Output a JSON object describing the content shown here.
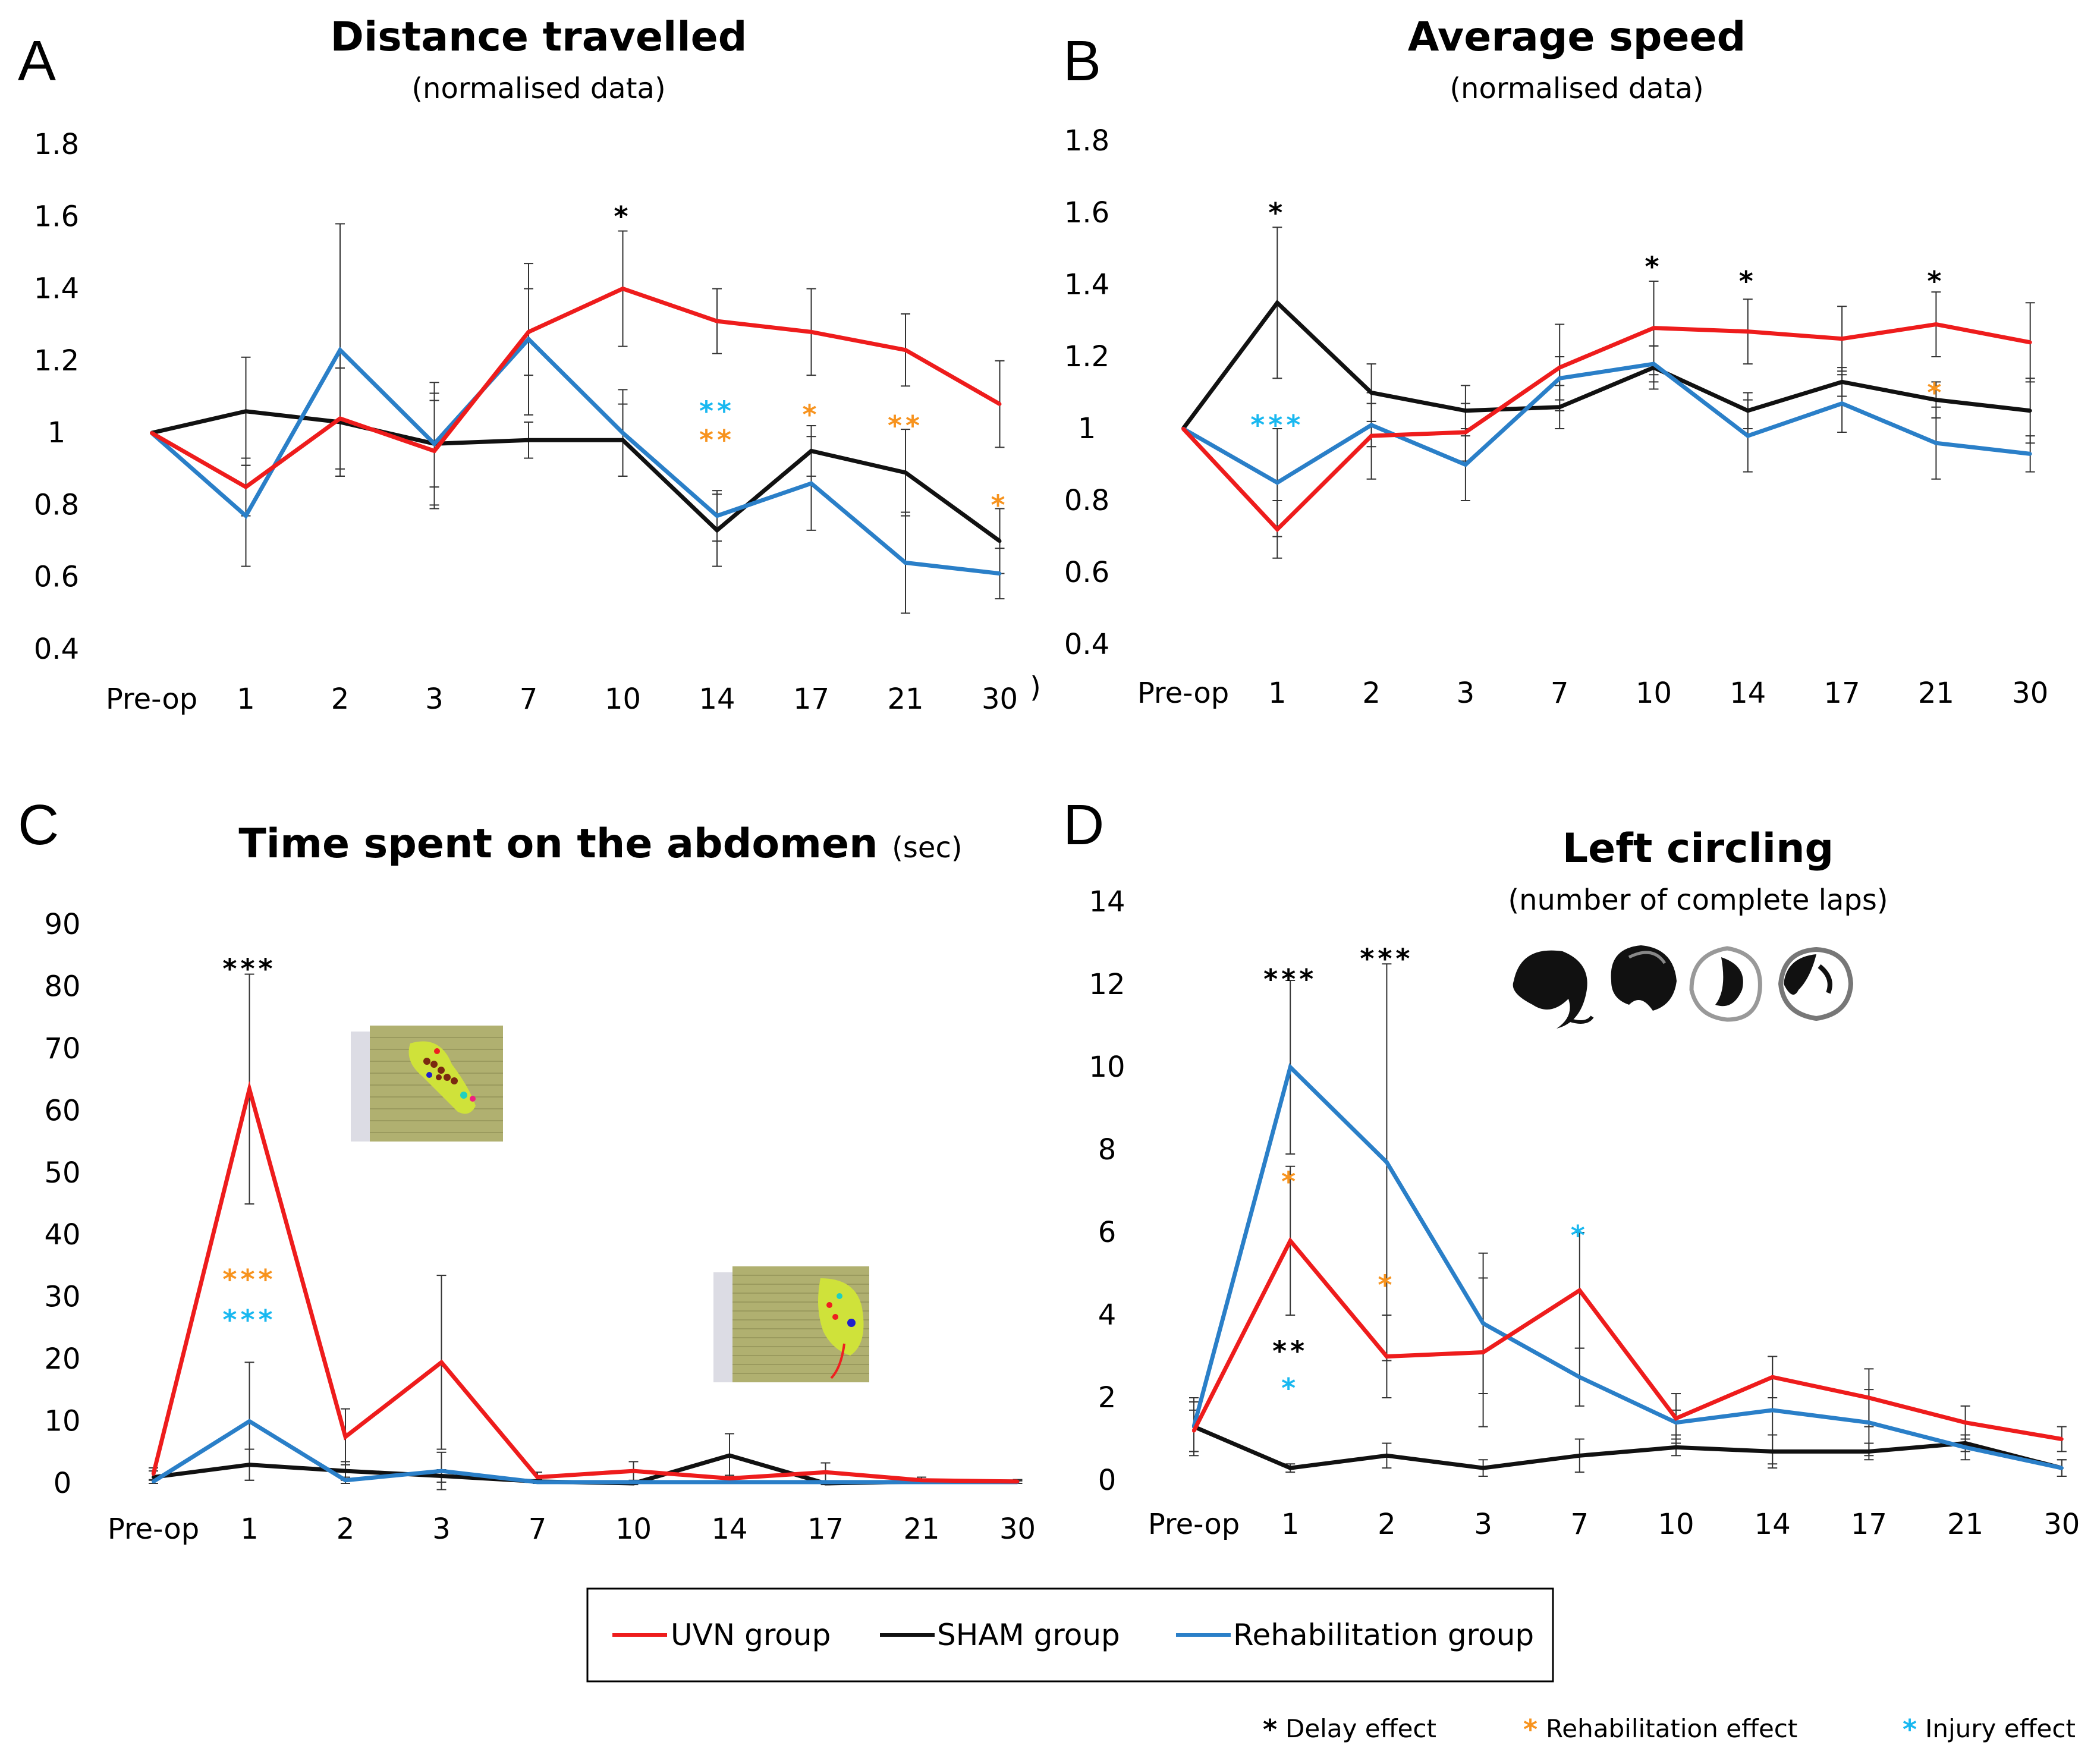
{
  "colors": {
    "uvn": "#ee1c1c",
    "sham": "#111111",
    "rehab": "#2a7fc8",
    "delay_star": "#000000",
    "rehab_star": "#f7931e",
    "injury_star": "#19b8f0"
  },
  "legend": {
    "uvn": "UVN group",
    "sham": "SHAM group",
    "rehab": "Rehabilitation group"
  },
  "effects_key": {
    "delay": "Delay effect",
    "rehab": "Rehabilitation effect",
    "injury": "Injury effect",
    "symbol": "*"
  },
  "chart_data": [
    {
      "panel": "A",
      "type": "line",
      "title": "Distance travelled",
      "subtitle": "(normalised data)",
      "categories": [
        "Pre-op",
        "1",
        "2",
        "3",
        "7",
        "10",
        "14",
        "17",
        "21",
        "30"
      ],
      "trailing_mark": ")",
      "ylim": [
        0.4,
        1.8
      ],
      "yticks": [
        "0.4",
        "0.6",
        "0.8",
        "1",
        "1.2",
        "1.4",
        "1.6",
        "1.8"
      ],
      "series": [
        {
          "name": "UVN group",
          "key": "uvn",
          "values": [
            1,
            0.85,
            1.04,
            0.95,
            1.28,
            1.4,
            1.31,
            1.28,
            1.23,
            1.08
          ],
          "err": [
            0,
            0.08,
            0.14,
            0.16,
            0.12,
            0.16,
            0.09,
            0.12,
            0.1,
            0.12
          ]
        },
        {
          "name": "SHAM group",
          "key": "sham",
          "values": [
            1,
            1.06,
            1.03,
            0.97,
            0.98,
            0.98,
            0.73,
            0.95,
            0.89,
            0.7
          ],
          "err": [
            0,
            0.15,
            0.15,
            0.12,
            0.05,
            0.1,
            0.1,
            0.07,
            0.12,
            0.09
          ]
        },
        {
          "name": "Rehabilitation group",
          "key": "rehab",
          "values": [
            1,
            0.77,
            1.23,
            0.97,
            1.26,
            1.0,
            0.77,
            0.86,
            0.64,
            0.61
          ],
          "err": [
            0,
            0.14,
            0.35,
            0.17,
            0.21,
            0.12,
            0.07,
            0.13,
            0.14,
            0.07
          ]
        }
      ],
      "annotations": [
        {
          "text": "*",
          "type": "delay",
          "cat": 5,
          "y": 1.62
        },
        {
          "text": "**",
          "type": "injury",
          "cat": 6,
          "y": 1.08
        },
        {
          "text": "**",
          "type": "rehab",
          "cat": 6,
          "y": 1.0
        },
        {
          "text": "*",
          "type": "rehab",
          "cat": 7,
          "y": 1.07
        },
        {
          "text": "**",
          "type": "rehab",
          "cat": 8,
          "y": 1.04
        },
        {
          "text": "*",
          "type": "rehab",
          "cat": 9,
          "y": 0.82
        }
      ]
    },
    {
      "panel": "B",
      "type": "line",
      "title": "Average speed",
      "subtitle": "(normalised data)",
      "categories": [
        "Pre-op",
        "1",
        "2",
        "3",
        "7",
        "10",
        "14",
        "17",
        "21",
        "30"
      ],
      "ylim": [
        0.4,
        1.8
      ],
      "yticks": [
        "0.4",
        "0.6",
        "0.8",
        "1",
        "1.2",
        "1.4",
        "1.6",
        "1.8"
      ],
      "series": [
        {
          "name": "UVN group",
          "key": "uvn",
          "values": [
            1,
            0.72,
            0.98,
            0.99,
            1.17,
            1.28,
            1.27,
            1.25,
            1.29,
            1.24
          ],
          "err": [
            0,
            0.08,
            0.12,
            0.08,
            0.12,
            0.13,
            0.09,
            0.09,
            0.09,
            0.11
          ]
        },
        {
          "name": "SHAM group",
          "key": "sham",
          "values": [
            1,
            1.35,
            1.1,
            1.05,
            1.06,
            1.17,
            1.05,
            1.13,
            1.08,
            1.05
          ],
          "err": [
            0,
            0.21,
            0.08,
            0.07,
            0.06,
            0.06,
            0.05,
            0.04,
            0.05,
            0.09
          ]
        },
        {
          "name": "Rehabilitation group",
          "key": "rehab",
          "values": [
            1,
            0.85,
            1.01,
            0.9,
            1.14,
            1.18,
            0.98,
            1.07,
            0.96,
            0.93
          ],
          "err": [
            0,
            0.15,
            0.06,
            0.1,
            0.06,
            0.05,
            0.1,
            0.08,
            0.1,
            0.05
          ]
        }
      ],
      "annotations": [
        {
          "text": "*",
          "type": "delay",
          "cat": 1,
          "y": 1.62
        },
        {
          "text": "***",
          "type": "injury",
          "cat": 1,
          "y": 1.03
        },
        {
          "text": "*",
          "type": "delay",
          "cat": 5,
          "y": 1.47
        },
        {
          "text": "*",
          "type": "delay",
          "cat": 6,
          "y": 1.43
        },
        {
          "text": "*",
          "type": "delay",
          "cat": 8,
          "y": 1.43
        },
        {
          "text": "*",
          "type": "rehab",
          "cat": 8,
          "y": 1.12
        }
      ]
    },
    {
      "panel": "C",
      "type": "line",
      "title": "Time spent on the abdomen",
      "title_unit": "(sec)",
      "categories": [
        "Pre-op",
        "1",
        "2",
        "3",
        "7",
        "10",
        "14",
        "17",
        "21",
        "30"
      ],
      "ylim": [
        0,
        90
      ],
      "yticks": [
        "0",
        "10",
        "20",
        "30",
        "40",
        "50",
        "60",
        "70",
        "80",
        "90"
      ],
      "series": [
        {
          "name": "UVN group",
          "key": "uvn",
          "values": [
            1.5,
            63.5,
            7.5,
            19.5,
            1,
            2,
            0.8,
            1.8,
            0.5,
            0.3
          ],
          "err": [
            1,
            18.5,
            4.5,
            14,
            0.8,
            1.5,
            0.5,
            1.5,
            0.5,
            0.3
          ]
        },
        {
          "name": "SHAM group",
          "key": "sham",
          "values": [
            1,
            3,
            2,
            1.2,
            0.3,
            0,
            4.5,
            0,
            0.3,
            0.3
          ],
          "err": [
            1,
            2.5,
            1.5,
            1,
            0.3,
            0.2,
            3.5,
            0.2,
            0.3,
            0.3
          ]
        },
        {
          "name": "Rehabilitation group",
          "key": "rehab",
          "values": [
            0.3,
            10,
            0.5,
            2,
            0.2,
            0.2,
            0.2,
            0.2,
            0.2,
            0.2
          ],
          "err": [
            0.3,
            9.5,
            0.5,
            3,
            0.2,
            0.2,
            0.2,
            0.2,
            0.2,
            0.2
          ]
        }
      ],
      "annotations": [
        {
          "text": "***",
          "type": "delay",
          "cat": 1,
          "y": 84
        },
        {
          "text": "***",
          "type": "rehab",
          "cat": 1,
          "y": 34
        },
        {
          "text": "***",
          "type": "injury",
          "cat": 1,
          "y": 27.5
        }
      ]
    },
    {
      "panel": "D",
      "type": "line",
      "title": "Left circling",
      "subtitle": "(number of complete laps)",
      "categories": [
        "Pre-op",
        "1",
        "2",
        "3",
        "7",
        "10",
        "14",
        "17",
        "21",
        "30"
      ],
      "ylim": [
        0,
        14
      ],
      "yticks": [
        "0",
        "2",
        "4",
        "6",
        "8",
        "10",
        "12",
        "14"
      ],
      "series": [
        {
          "name": "UVN group",
          "key": "uvn",
          "values": [
            1.2,
            5.8,
            3.0,
            3.1,
            4.6,
            1.5,
            2.5,
            2.0,
            1.4,
            1.0
          ],
          "err": [
            0.5,
            1.8,
            1.0,
            1.8,
            1.4,
            0.6,
            0.5,
            0.7,
            0.4,
            0.3
          ]
        },
        {
          "name": "SHAM group",
          "key": "sham",
          "values": [
            1.3,
            0.3,
            0.6,
            0.3,
            0.6,
            0.8,
            0.7,
            0.7,
            0.9,
            0.3
          ],
          "err": [
            0.7,
            0.1,
            0.3,
            0.2,
            0.4,
            0.2,
            0.4,
            0.2,
            0.2,
            0.2
          ]
        },
        {
          "name": "Rehabilitation group",
          "key": "rehab",
          "values": [
            1.3,
            10.0,
            7.7,
            3.8,
            2.5,
            1.4,
            1.7,
            1.4,
            0.8,
            0.3
          ],
          "err": [
            0.6,
            2.1,
            4.8,
            1.7,
            0.7,
            0.3,
            1.3,
            0.8,
            0.3,
            0.2
          ]
        }
      ],
      "annotations": [
        {
          "text": "***",
          "type": "delay",
          "cat": 1,
          "y": 12.3
        },
        {
          "text": "*",
          "type": "rehab",
          "cat": 1,
          "y": 7.4
        },
        {
          "text": "***",
          "type": "delay",
          "cat": 2,
          "y": 12.8
        },
        {
          "text": "*",
          "type": "rehab",
          "cat": 2,
          "y": 4.9
        },
        {
          "text": "**",
          "type": "delay",
          "cat": 1,
          "y": 3.3
        },
        {
          "text": "*",
          "type": "injury",
          "cat": 1,
          "y": 2.4
        },
        {
          "text": "*",
          "type": "injury",
          "cat": 4,
          "y": 6.1
        }
      ]
    }
  ]
}
